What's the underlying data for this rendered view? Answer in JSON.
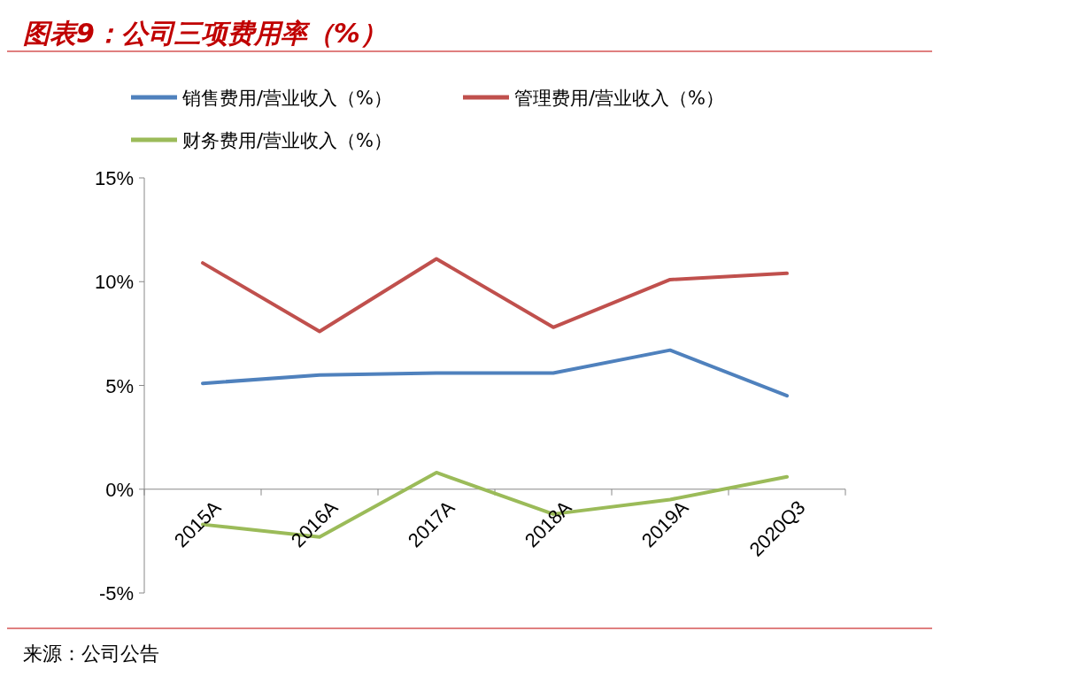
{
  "chart_data": {
    "type": "line",
    "title": "图表9：公司三项费用率（%）",
    "categories": [
      "2015A",
      "2016A",
      "2017A",
      "2018A",
      "2019A",
      "2020Q3"
    ],
    "series": [
      {
        "name": "销售费用/营业收入（%）",
        "color": "#4f81bd",
        "values": [
          5.1,
          5.5,
          5.6,
          5.6,
          6.7,
          4.5
        ]
      },
      {
        "name": "管理费用/营业收入（%）",
        "color": "#c0504d",
        "values": [
          10.9,
          7.6,
          11.1,
          7.8,
          10.1,
          10.4
        ]
      },
      {
        "name": "财务费用/营业收入（%）",
        "color": "#9bbb59",
        "values": [
          -1.7,
          -2.3,
          0.8,
          -1.2,
          -0.5,
          0.6
        ]
      }
    ],
    "ylim": [
      -5,
      15
    ],
    "yticks": [
      {
        "value": -5,
        "label": "-5%"
      },
      {
        "value": 0,
        "label": "0%"
      },
      {
        "value": 5,
        "label": "5%"
      },
      {
        "value": 10,
        "label": "10%"
      },
      {
        "value": 15,
        "label": "15%"
      }
    ],
    "legend": "top",
    "marker": "none",
    "line_style": "solid",
    "annotations": [
      "来源：公司公告"
    ]
  }
}
